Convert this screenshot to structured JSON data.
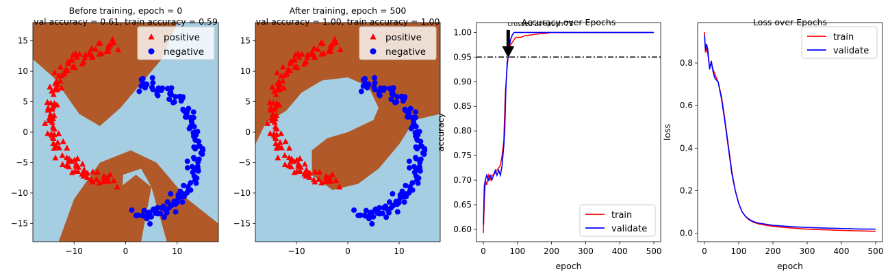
{
  "chart_data": [
    {
      "type": "scatter",
      "title_lines": [
        "Before training, epoch = 0",
        "val accuracy = 0.61, train accuracy = 0.59"
      ],
      "xlim": [
        -18,
        18
      ],
      "ylim": [
        -18,
        18
      ],
      "xticks": [
        -10,
        0,
        10
      ],
      "xtick_labels": [
        "−10",
        "0",
        "10"
      ],
      "yticks": [
        -15,
        -10,
        -5,
        0,
        5,
        10,
        15
      ],
      "ytick_labels": [
        "−15",
        "−10",
        "−5",
        "0",
        "5",
        "10",
        "15"
      ],
      "legend_position": "top-right",
      "legend": [
        {
          "label": "positive",
          "marker": "triangle",
          "color": "#ff0000"
        },
        {
          "label": "negative",
          "marker": "circle",
          "color": "#0000ff"
        }
      ],
      "region_colors": {
        "positive": "#b15928",
        "negative": "#a6cee3"
      },
      "decision_state": "untrained"
    },
    {
      "type": "scatter",
      "title_lines": [
        "After training, epoch = 500",
        "val accuracy = 1.00, train accuracy = 1.00"
      ],
      "xlim": [
        -18,
        18
      ],
      "ylim": [
        -18,
        18
      ],
      "xticks": [
        -10,
        0,
        10
      ],
      "xtick_labels": [
        "−10",
        "0",
        "10"
      ],
      "yticks": [
        -15,
        -10,
        -5,
        0,
        5,
        10,
        15
      ],
      "ytick_labels": [
        "−15",
        "−10",
        "−5",
        "0",
        "5",
        "10",
        "15"
      ],
      "legend_position": "top-right",
      "legend": [
        {
          "label": "positive",
          "marker": "triangle",
          "color": "#ff0000"
        },
        {
          "label": "negative",
          "marker": "circle",
          "color": "#0000ff"
        }
      ],
      "region_colors": {
        "positive": "#b15928",
        "negative": "#a6cee3"
      },
      "decision_state": "trained"
    },
    {
      "type": "line",
      "title": "Accuracy over Epochs",
      "xlabel": "epoch",
      "ylabel": "accuracy",
      "xlim": [
        -20,
        520
      ],
      "ylim": [
        0.575,
        1.02
      ],
      "xticks": [
        0,
        100,
        200,
        300,
        400,
        500
      ],
      "yticks": [
        0.6,
        0.65,
        0.7,
        0.75,
        0.8,
        0.85,
        0.9,
        0.95,
        1.0
      ],
      "ytick_labels": [
        "0.60",
        "0.65",
        "0.70",
        "0.75",
        "0.80",
        "0.85",
        "0.90",
        "0.95",
        "1.00"
      ],
      "legend_position": "lower-right",
      "series": [
        {
          "name": "train",
          "color": "#ff0000",
          "x": [
            0,
            3,
            6,
            10,
            15,
            20,
            25,
            30,
            35,
            40,
            45,
            50,
            55,
            60,
            62,
            65,
            68,
            70,
            73,
            76,
            80,
            85,
            90,
            95,
            100,
            110,
            120,
            140,
            160,
            180,
            200,
            300,
            400,
            500
          ],
          "y": [
            0.593,
            0.66,
            0.7,
            0.69,
            0.71,
            0.7,
            0.71,
            0.71,
            0.715,
            0.72,
            0.725,
            0.73,
            0.75,
            0.78,
            0.82,
            0.88,
            0.91,
            0.93,
            0.95,
            0.965,
            0.975,
            0.98,
            0.985,
            0.99,
            0.99,
            0.99,
            0.993,
            0.995,
            0.997,
            0.998,
            1.0,
            1.0,
            1.0,
            1.0
          ]
        },
        {
          "name": "validate",
          "color": "#0000ff",
          "x": [
            0,
            3,
            6,
            10,
            15,
            20,
            25,
            30,
            35,
            40,
            45,
            50,
            55,
            60,
            63,
            66,
            70,
            73,
            76,
            80,
            85,
            90,
            100,
            110,
            120,
            140,
            160,
            180,
            200,
            300,
            400,
            500
          ],
          "y": [
            0.61,
            0.69,
            0.7,
            0.71,
            0.7,
            0.71,
            0.7,
            0.71,
            0.72,
            0.71,
            0.72,
            0.71,
            0.73,
            0.77,
            0.8,
            0.88,
            0.94,
            0.95,
            0.97,
            0.985,
            0.995,
            1.0,
            1.0,
            1.0,
            1.0,
            1.0,
            1.0,
            1.0,
            1.0,
            1.0,
            1.0,
            1.0
          ]
        }
      ],
      "hline": {
        "y": 0.95,
        "style": "dash-dot",
        "color": "#000000"
      },
      "annotation": {
        "text": "crossed at epoch 73",
        "x": 73,
        "y": 0.95,
        "arrow": "down"
      }
    },
    {
      "type": "line",
      "title": "Loss over Epochs",
      "xlabel": "epoch",
      "ylabel": "loss",
      "xlim": [
        -20,
        520
      ],
      "ylim": [
        -0.04,
        0.99
      ],
      "xticks": [
        0,
        100,
        200,
        300,
        400,
        500
      ],
      "yticks": [
        0.0,
        0.2,
        0.4,
        0.6,
        0.8
      ],
      "ytick_labels": [
        "0.0",
        "0.2",
        "0.4",
        "0.6",
        "0.8"
      ],
      "legend_position": "top-right",
      "series": [
        {
          "name": "train",
          "color": "#ff0000",
          "x": [
            0,
            3,
            6,
            10,
            15,
            20,
            25,
            30,
            35,
            40,
            50,
            60,
            70,
            80,
            90,
            100,
            110,
            120,
            130,
            140,
            150,
            160,
            180,
            200,
            250,
            300,
            350,
            400,
            450,
            500
          ],
          "y": [
            0.945,
            0.85,
            0.87,
            0.84,
            0.78,
            0.8,
            0.77,
            0.75,
            0.73,
            0.71,
            0.64,
            0.53,
            0.41,
            0.29,
            0.2,
            0.14,
            0.1,
            0.078,
            0.063,
            0.054,
            0.048,
            0.043,
            0.037,
            0.032,
            0.025,
            0.019,
            0.016,
            0.013,
            0.011,
            0.009
          ]
        },
        {
          "name": "validate",
          "color": "#0000ff",
          "x": [
            0,
            3,
            6,
            10,
            15,
            20,
            25,
            30,
            35,
            40,
            50,
            60,
            70,
            80,
            90,
            100,
            110,
            120,
            130,
            140,
            150,
            160,
            180,
            200,
            250,
            300,
            350,
            400,
            450,
            500
          ],
          "y": [
            0.93,
            0.86,
            0.89,
            0.86,
            0.77,
            0.81,
            0.76,
            0.73,
            0.72,
            0.71,
            0.63,
            0.52,
            0.4,
            0.28,
            0.2,
            0.14,
            0.1,
            0.079,
            0.066,
            0.057,
            0.051,
            0.047,
            0.042,
            0.037,
            0.031,
            0.027,
            0.024,
            0.022,
            0.02,
            0.019
          ]
        }
      ]
    }
  ]
}
